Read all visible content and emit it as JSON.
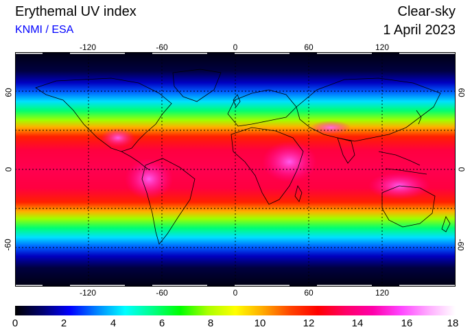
{
  "header": {
    "title": "Erythemal UV index",
    "credit": "KNMI / ESA",
    "mode": "Clear-sky",
    "date": "1 April 2023"
  },
  "map": {
    "lon_labels": [
      "-120",
      "-60",
      "0",
      "60",
      "120"
    ],
    "lat_labels": [
      "60",
      "0",
      "-60"
    ],
    "colors": {
      "ocean_outline": "#000000",
      "grid": "#000000"
    }
  },
  "colorbar": {
    "ticks": [
      "0",
      "2",
      "4",
      "6",
      "8",
      "10",
      "12",
      "14",
      "16",
      "18"
    ],
    "stops": [
      "#000000",
      "#000070",
      "#0000ff",
      "#0088ff",
      "#00ffff",
      "#00ff88",
      "#00ff00",
      "#aaff00",
      "#ffff00",
      "#ffaa00",
      "#ff4400",
      "#ff0000",
      "#ff0066",
      "#ff00aa",
      "#ff44ff",
      "#ffaaff",
      "#ffffff"
    ]
  }
}
